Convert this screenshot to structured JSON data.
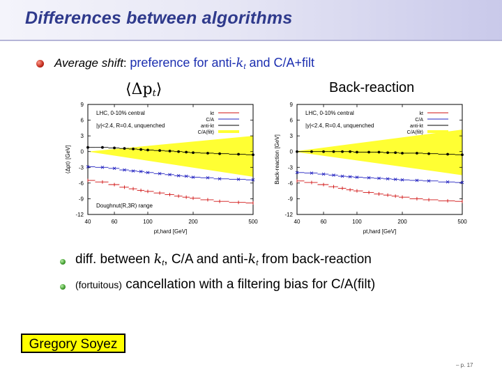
{
  "slide": {
    "title": "Differences between algorithms",
    "bullet1": {
      "prefix": "Average shift",
      "colon": ":",
      "text_a": "preference for anti-",
      "kt_k": "k",
      "kt_t": "t",
      "text_b": " and C/A+filt"
    },
    "label_left": "⟨Δp",
    "label_left_sub": "t",
    "label_left_close": "⟩",
    "label_right": "Back-reaction",
    "bullet2": {
      "a": "diff. between ",
      "k": "k",
      "t": "t",
      "b": ", C/A and anti-",
      "k2": "k",
      "t2": "t",
      "c": " from back-reaction"
    },
    "bullet3": {
      "small": "(fortuitous)",
      "text": " cancellation with a filtering bias for C/A(filt)"
    },
    "author": "Gregory Soyez",
    "page": "– p. 17"
  },
  "colors": {
    "title": "#2f3a8c",
    "kt": "#d01010",
    "ca": "#2020c0",
    "antikt": "#000000",
    "band": "#ffff33"
  },
  "chart_data": [
    {
      "type": "scatter",
      "title": "⟨Δpt⟩",
      "xlabel": "pt,hard [GeV]",
      "ylabel": "⟨Δpt⟩ [GeV]",
      "xscale": "log",
      "xlim": [
        40,
        500
      ],
      "ylim": [
        -12,
        9
      ],
      "xticks": [
        40,
        60,
        100,
        200,
        500
      ],
      "yticks": [
        9,
        6,
        3,
        0,
        -3,
        -6,
        -9,
        -12
      ],
      "annotations": [
        "LHC, 0-10% central",
        "|y|<2.4, R=0.4, unquenched",
        "Doughnut(R,3R) range"
      ],
      "legend": [
        "kt",
        "C/A",
        "anti-kt",
        "C/A(filt)"
      ],
      "band": {
        "x": [
          40,
          500
        ],
        "lower": [
          0,
          -4.8
        ],
        "upper": [
          0,
          3.0
        ]
      },
      "series": [
        {
          "name": "kt",
          "x": [
            40,
            50,
            60,
            70,
            80,
            90,
            100,
            120,
            140,
            160,
            180,
            200,
            250,
            300,
            400,
            500
          ],
          "y": [
            -5.5,
            -5.8,
            -6.3,
            -6.8,
            -7.1,
            -7.4,
            -7.6,
            -7.9,
            -8.2,
            -8.5,
            -8.7,
            -8.9,
            -9.2,
            -9.5,
            -9.7,
            -9.8
          ]
        },
        {
          "name": "C/A",
          "x": [
            40,
            50,
            60,
            70,
            80,
            90,
            100,
            120,
            140,
            160,
            180,
            200,
            250,
            300,
            400,
            500
          ],
          "y": [
            -2.9,
            -3.0,
            -3.2,
            -3.5,
            -3.7,
            -3.8,
            -4.0,
            -4.2,
            -4.4,
            -4.6,
            -4.7,
            -4.9,
            -5.0,
            -5.2,
            -5.3,
            -5.4
          ]
        },
        {
          "name": "anti-kt",
          "x": [
            40,
            50,
            60,
            70,
            80,
            90,
            100,
            120,
            140,
            160,
            180,
            200,
            250,
            300,
            400,
            500
          ],
          "y": [
            0.8,
            0.8,
            0.7,
            0.6,
            0.5,
            0.4,
            0.3,
            0.2,
            0.1,
            0.0,
            -0.1,
            -0.2,
            -0.3,
            -0.4,
            -0.5,
            -0.6
          ]
        },
        {
          "name": "C/A(filt)",
          "x": [
            40,
            50,
            60,
            70,
            80,
            90,
            100,
            120,
            140,
            160,
            180,
            200,
            250,
            300,
            400,
            500
          ],
          "y": [
            1.0,
            0.9,
            0.9,
            0.8,
            0.7,
            0.5,
            0.3,
            0.0,
            -0.2,
            -0.4,
            -0.6,
            -0.7,
            -0.9,
            -1.1,
            -1.3,
            -1.4
          ]
        }
      ]
    },
    {
      "type": "scatter",
      "title": "Back-reaction",
      "xlabel": "pt,hard [GeV]",
      "ylabel": "Back-reaction [GeV]",
      "xscale": "log",
      "xlim": [
        40,
        500
      ],
      "ylim": [
        -12,
        9
      ],
      "xticks": [
        40,
        60,
        100,
        200,
        500
      ],
      "yticks": [
        9,
        6,
        3,
        0,
        -3,
        -6,
        -9,
        -12
      ],
      "annotations": [
        "LHC, 0-10% central",
        "|y|<2.4, R=0.4, unquenched"
      ],
      "legend": [
        "kt",
        "C/A",
        "anti-kt",
        "C/A(filt)"
      ],
      "band": {
        "x": [
          40,
          500
        ],
        "lower": [
          -0.1,
          -4.5
        ],
        "upper": [
          0.1,
          4.2
        ]
      },
      "series": [
        {
          "name": "kt",
          "x": [
            40,
            50,
            60,
            70,
            80,
            90,
            100,
            120,
            140,
            160,
            180,
            200,
            250,
            300,
            400,
            500
          ],
          "y": [
            -5.6,
            -5.9,
            -6.3,
            -6.7,
            -7.0,
            -7.3,
            -7.5,
            -7.8,
            -8.1,
            -8.3,
            -8.5,
            -8.7,
            -9.0,
            -9.2,
            -9.4,
            -9.5
          ]
        },
        {
          "name": "C/A",
          "x": [
            40,
            50,
            60,
            70,
            80,
            90,
            100,
            120,
            140,
            160,
            180,
            200,
            250,
            300,
            400,
            500
          ],
          "y": [
            -4.0,
            -4.1,
            -4.3,
            -4.5,
            -4.7,
            -4.8,
            -4.9,
            -5.0,
            -5.1,
            -5.2,
            -5.3,
            -5.4,
            -5.5,
            -5.6,
            -5.8,
            -5.9
          ]
        },
        {
          "name": "anti-kt",
          "x": [
            40,
            50,
            60,
            70,
            80,
            90,
            100,
            120,
            140,
            160,
            180,
            200,
            250,
            300,
            400,
            500
          ],
          "y": [
            0.0,
            0.0,
            0.0,
            0.0,
            0.0,
            0.0,
            -0.1,
            -0.1,
            -0.1,
            -0.2,
            -0.2,
            -0.3,
            -0.3,
            -0.4,
            -0.5,
            -0.6
          ]
        },
        {
          "name": "C/A(filt)",
          "x": [
            40,
            50,
            60,
            70,
            80,
            90,
            100,
            120,
            140,
            160,
            180,
            200,
            250,
            300,
            400,
            500
          ],
          "y": [
            -4.1,
            -4.2,
            -4.4,
            -4.6,
            -4.8,
            -4.9,
            -5.0,
            -5.1,
            -5.2,
            -5.3,
            -5.4,
            -5.5,
            -5.6,
            -5.7,
            -5.9,
            -6.0
          ]
        }
      ]
    }
  ]
}
